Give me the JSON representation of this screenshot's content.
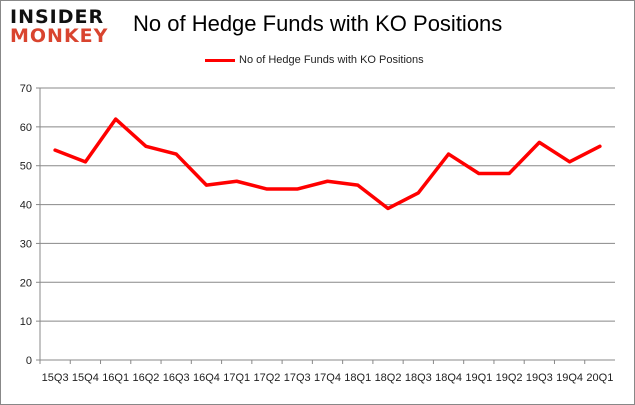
{
  "logo": {
    "line1": "INSIDER",
    "line2": "MONKEY"
  },
  "chart_data": {
    "type": "line",
    "title": "No of Hedge Funds with KO Positions",
    "categories": [
      "15Q3",
      "15Q4",
      "16Q1",
      "16Q2",
      "16Q3",
      "16Q4",
      "17Q1",
      "17Q2",
      "17Q3",
      "17Q4",
      "18Q1",
      "18Q2",
      "18Q3",
      "18Q4",
      "19Q1",
      "19Q2",
      "19Q3",
      "19Q4",
      "20Q1"
    ],
    "series": [
      {
        "name": "No of Hedge Funds with KO Positions",
        "color": "#ff0000",
        "values": [
          54,
          51,
          62,
          55,
          53,
          45,
          46,
          44,
          44,
          46,
          45,
          39,
          43,
          53,
          48,
          48,
          56,
          51,
          55
        ]
      }
    ],
    "ylim": [
      0,
      70
    ],
    "yticks": [
      0,
      10,
      20,
      30,
      40,
      50,
      60,
      70
    ],
    "grid": true,
    "legend": "top"
  }
}
